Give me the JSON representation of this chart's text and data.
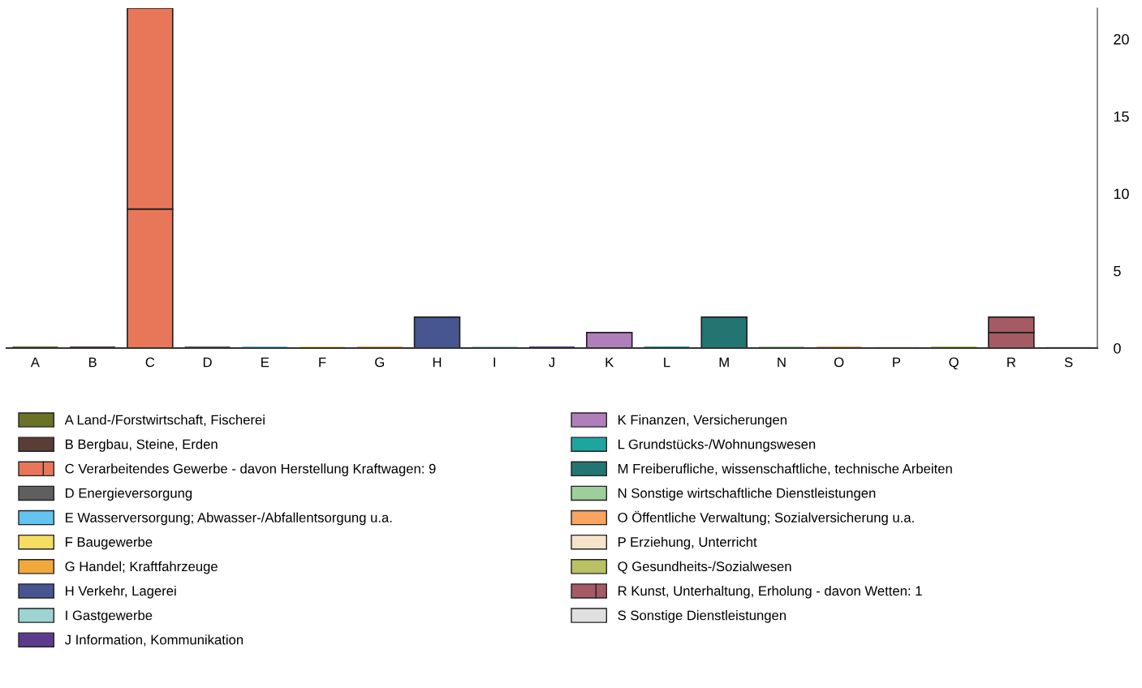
{
  "chart_data": {
    "type": "bar",
    "stacked": true,
    "categories": [
      "A",
      "B",
      "C",
      "D",
      "E",
      "F",
      "G",
      "H",
      "I",
      "J",
      "K",
      "L",
      "M",
      "N",
      "O",
      "P",
      "Q",
      "R",
      "S"
    ],
    "ylim": [
      0,
      22
    ],
    "yticks": [
      0,
      5,
      10,
      15,
      20
    ],
    "grid": false,
    "legend": "bottom",
    "series": [
      {
        "colors": [
          "#6b7228",
          "#5a3d36",
          "#e8775a",
          "#5f5f5f",
          "#62c4ef",
          "#f5dc62",
          "#f2a93b",
          "#475590",
          "#9dd3d0",
          "#5e3a8f",
          "#b07fba",
          "#1ea5a0",
          "#237572",
          "#9ecf9b",
          "#f9a461",
          "#f5e3cc",
          "#b9c162",
          "#a45b63",
          "#e0e0e0"
        ],
        "values": [
          null,
          null,
          9,
          null,
          null,
          null,
          null,
          null,
          null,
          null,
          null,
          null,
          null,
          null,
          null,
          null,
          null,
          1,
          null
        ]
      },
      {
        "name": "A Land-/Forstwirtschaft, Fischerei",
        "color": "#6b7228",
        "values": [
          0,
          null,
          null,
          null,
          null,
          null,
          null,
          null,
          null,
          null,
          null,
          null,
          null,
          null,
          null,
          null,
          null,
          null,
          null
        ]
      },
      {
        "name": "B Bergbau, Steine, Erden",
        "color": "#5a3d36",
        "values": [
          null,
          0,
          null,
          null,
          null,
          null,
          null,
          null,
          null,
          null,
          null,
          null,
          null,
          null,
          null,
          null,
          null,
          null,
          null
        ]
      },
      {
        "name": "C Verarbeitendes Gewerbe - davon Herstellung Kraftwagen: 9",
        "color": "#e8775a",
        "values": [
          null,
          null,
          13,
          null,
          null,
          null,
          null,
          null,
          null,
          null,
          null,
          null,
          null,
          null,
          null,
          null,
          null,
          null,
          null
        ]
      },
      {
        "name": "D Energieversorgung",
        "color": "#5f5f5f",
        "values": [
          null,
          null,
          null,
          0,
          null,
          null,
          null,
          null,
          null,
          null,
          null,
          null,
          null,
          null,
          null,
          null,
          null,
          null,
          null
        ]
      },
      {
        "name": "E Wasserversorgung; Abwasser-/Abfallentsorgung u.a.",
        "color": "#62c4ef",
        "values": [
          null,
          null,
          null,
          null,
          0,
          null,
          null,
          null,
          null,
          null,
          null,
          null,
          null,
          null,
          null,
          null,
          null,
          null,
          null
        ]
      },
      {
        "name": "F Baugewerbe",
        "color": "#f5dc62",
        "values": [
          null,
          null,
          null,
          null,
          null,
          0,
          null,
          null,
          null,
          null,
          null,
          null,
          null,
          null,
          null,
          null,
          null,
          null,
          null
        ]
      },
      {
        "name": "G Handel; Kraftfahrzeuge",
        "color": "#f2a93b",
        "values": [
          null,
          null,
          null,
          null,
          null,
          null,
          0,
          null,
          null,
          null,
          null,
          null,
          null,
          null,
          null,
          null,
          null,
          null,
          null
        ]
      },
      {
        "name": "H Verkehr, Lagerei",
        "color": "#475590",
        "values": [
          null,
          null,
          null,
          null,
          null,
          null,
          null,
          2,
          null,
          null,
          null,
          null,
          null,
          null,
          null,
          null,
          null,
          null,
          null
        ]
      },
      {
        "name": "I Gastgewerbe",
        "color": "#9dd3d0",
        "values": [
          null,
          null,
          null,
          null,
          null,
          null,
          null,
          null,
          0,
          null,
          null,
          null,
          null,
          null,
          null,
          null,
          null,
          null,
          null
        ]
      },
      {
        "name": "J Information, Kommunikation",
        "color": "#5e3a8f",
        "values": [
          null,
          null,
          null,
          null,
          null,
          null,
          null,
          null,
          null,
          0,
          null,
          null,
          null,
          null,
          null,
          null,
          null,
          null,
          null
        ]
      },
      {
        "name": "K Finanzen, Versicherungen",
        "color": "#b07fba",
        "values": [
          null,
          null,
          null,
          null,
          null,
          null,
          null,
          null,
          null,
          null,
          1,
          null,
          null,
          null,
          null,
          null,
          null,
          null,
          null
        ]
      },
      {
        "name": "L Grundstücks-/Wohnungswesen",
        "color": "#1ea5a0",
        "values": [
          null,
          null,
          null,
          null,
          null,
          null,
          null,
          null,
          null,
          null,
          null,
          0,
          null,
          null,
          null,
          null,
          null,
          null,
          null
        ]
      },
      {
        "name": "M Freiberufliche, wissenschaftliche, technische Arbeiten",
        "color": "#237572",
        "values": [
          null,
          null,
          null,
          null,
          null,
          null,
          null,
          null,
          null,
          null,
          null,
          null,
          2,
          null,
          null,
          null,
          null,
          null,
          null
        ]
      },
      {
        "name": "N Sonstige wirtschaftliche Dienstleistungen",
        "color": "#9ecf9b",
        "values": [
          null,
          null,
          null,
          null,
          null,
          null,
          null,
          null,
          null,
          null,
          null,
          null,
          null,
          0,
          null,
          null,
          null,
          null,
          null
        ]
      },
      {
        "name": "O Öffentliche Verwaltung; Sozialversicherung u.a.",
        "color": "#f9a461",
        "values": [
          null,
          null,
          null,
          null,
          null,
          null,
          null,
          null,
          null,
          null,
          null,
          null,
          null,
          null,
          0,
          null,
          null,
          null,
          null
        ]
      },
      {
        "name": "P Erziehung, Unterricht",
        "color": "#f5e3cc",
        "values": [
          null,
          null,
          null,
          null,
          null,
          null,
          null,
          null,
          null,
          null,
          null,
          null,
          null,
          null,
          null,
          0,
          null,
          null,
          null
        ]
      },
      {
        "name": "Q Gesundheits-/Sozialwesen",
        "color": "#b9c162",
        "values": [
          null,
          null,
          null,
          null,
          null,
          null,
          null,
          null,
          null,
          null,
          null,
          null,
          null,
          null,
          null,
          null,
          0,
          null,
          null
        ]
      },
      {
        "name": "R Kunst, Unterhaltung, Erholung - davon Wetten: 1",
        "color": "#a45b63",
        "values": [
          null,
          null,
          null,
          null,
          null,
          null,
          null,
          null,
          null,
          null,
          null,
          null,
          null,
          null,
          null,
          null,
          null,
          1,
          null
        ]
      },
      {
        "name": "S Sonstige Dienstleistungen",
        "color": "#e0e0e0",
        "values": [
          null,
          null,
          null,
          null,
          null,
          null,
          null,
          null,
          null,
          null,
          null,
          null,
          null,
          null,
          null,
          null,
          null,
          null,
          0
        ]
      }
    ]
  }
}
